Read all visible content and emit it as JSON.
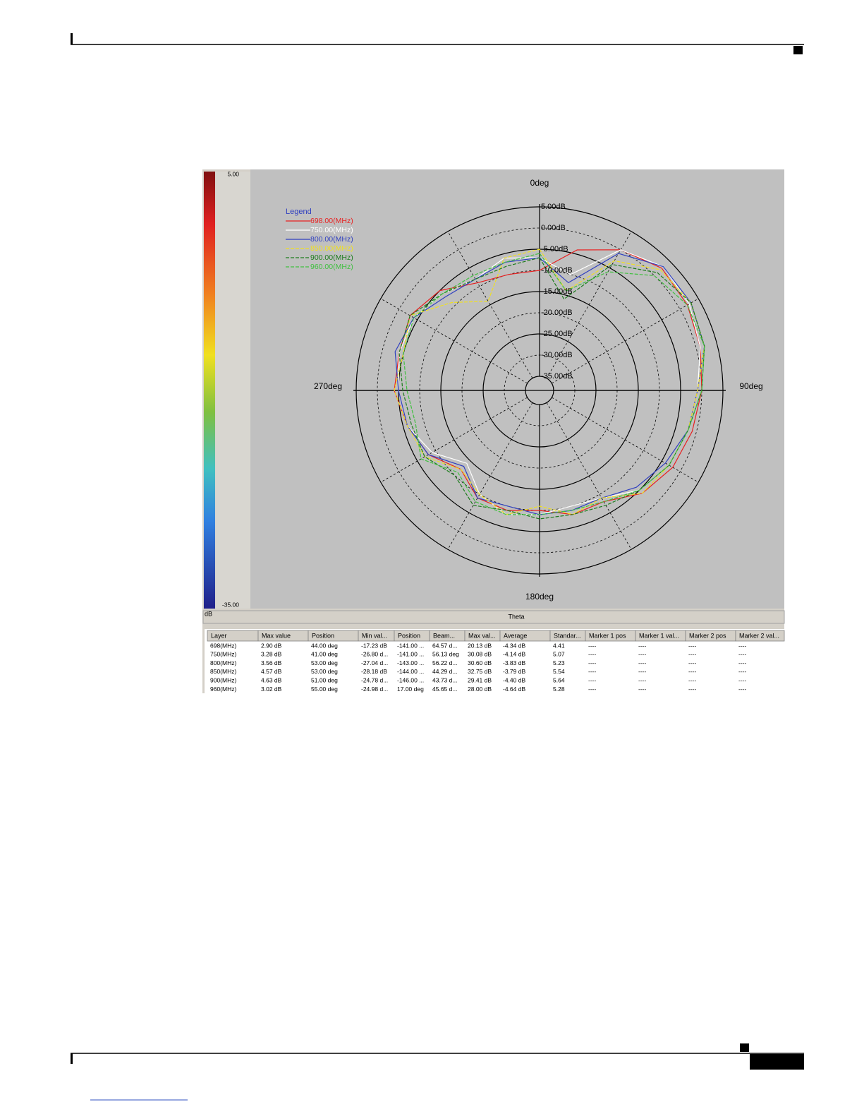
{
  "chart_data": {
    "type": "polar",
    "legend_title": "Legend",
    "theta": [
      0,
      15,
      30,
      45,
      60,
      75,
      90,
      105,
      120,
      135,
      150,
      165,
      180,
      195,
      210,
      225,
      240,
      255,
      270,
      285,
      300,
      315,
      330,
      345
    ],
    "rlim": [
      -35,
      5
    ],
    "rticks": [
      {
        "value": 5,
        "label": "5.00dB"
      },
      {
        "value": 0,
        "label": "0.00dB"
      },
      {
        "value": -5,
        "label": "-5.00dB"
      },
      {
        "value": -10,
        "label": "-10.00dB"
      },
      {
        "value": -15,
        "label": "-15.00dB"
      },
      {
        "value": -20,
        "label": "-20.00dB"
      },
      {
        "value": -25,
        "label": "-25.00dB"
      },
      {
        "value": -30,
        "label": "-30.00dB"
      },
      {
        "value": -35,
        "label": "-35.00dB"
      }
    ],
    "thetaticks": [
      {
        "value": 0,
        "label": "0deg"
      },
      {
        "value": 90,
        "label": "90deg"
      },
      {
        "value": 180,
        "label": "180deg"
      },
      {
        "value": 270,
        "label": "270deg"
      }
    ],
    "grid": true,
    "clim": [
      -35,
      5
    ],
    "cticks": [
      {
        "value": 5,
        "label": "5.00"
      },
      {
        "value": -35,
        "label": "-35.00"
      }
    ],
    "colorbar_label": "dB",
    "xlabel": "Theta",
    "series": [
      {
        "name": "698.00(MHz)",
        "color": "#e82020",
        "dashed": false,
        "values": [
          -10,
          -4,
          0,
          2.5,
          2,
          1,
          0,
          -1,
          -2,
          -4,
          -8,
          -8,
          -10,
          -9,
          -9,
          -12,
          -8,
          -6,
          -4,
          -4,
          -3,
          -5,
          -9,
          -10
        ]
      },
      {
        "name": "750.00(MHz)",
        "color": "#ffffff",
        "dashed": false,
        "values": [
          -7,
          -10,
          0,
          3,
          2.5,
          1,
          -1,
          -2,
          -3,
          -5,
          -9,
          -10,
          -9,
          -8,
          -10,
          -14,
          -9,
          -6,
          -5,
          -4,
          -4,
          -6,
          -8,
          -6
        ]
      },
      {
        "name": "800.00(MHz)",
        "color": "#3040c0",
        "dashed": false,
        "values": [
          -7,
          -12,
          -1,
          3,
          3,
          2,
          -1,
          -2,
          -4,
          -6,
          -9,
          -9,
          -9,
          -10,
          -9,
          -13,
          -8,
          -6,
          -5,
          -3,
          -4,
          -7,
          -8,
          -7
        ]
      },
      {
        "name": "850.00(MHz)",
        "color": "#f0e020",
        "dashed": true,
        "values": [
          -5,
          -14,
          -3,
          2,
          3,
          2,
          -1,
          -2,
          -3,
          -4,
          -9,
          -8,
          -11,
          -8,
          -10,
          -12,
          -7,
          -6,
          -4,
          -5,
          -3,
          -9,
          -14,
          -6
        ]
      },
      {
        "name": "900.00(MHz)",
        "color": "#1c7c1c",
        "dashed": true,
        "values": [
          -7,
          -16,
          -4,
          1,
          3,
          2,
          0,
          -2,
          -3,
          -5,
          -7,
          -8,
          -8,
          -9,
          -7,
          -10,
          -7,
          -7,
          -6,
          -4,
          -3,
          -6,
          -8,
          -8
        ]
      },
      {
        "name": "960.00(MHz)",
        "color": "#40c040",
        "dashed": true,
        "values": [
          -6,
          -14,
          -6,
          0,
          2,
          2,
          0,
          -2,
          -3,
          -5,
          -8,
          -9,
          -9,
          -8,
          -8,
          -11,
          -6,
          -8,
          -7,
          -5,
          -4,
          -6,
          -7,
          -7
        ]
      }
    ]
  },
  "table": {
    "header": [
      "Layer",
      "Max value",
      "Position",
      "Min val...",
      "Position",
      "Beam...",
      "Max val...",
      "Average",
      "Standar...",
      "Marker 1 pos",
      "Marker 1 val...",
      "Marker 2 pos",
      "Marker 2 val..."
    ],
    "rows": [
      [
        "698(MHz)",
        "2.90 dB",
        "44.00 deg",
        "-17.23 dB",
        "-141.00 ...",
        "64.57 d...",
        "20.13 dB",
        "-4.34 dB",
        "4.41",
        "----",
        "----",
        "----",
        "----"
      ],
      [
        "750(MHz)",
        "3.28 dB",
        "41.00 deg",
        "-26.80 d...",
        "-141.00 ...",
        "56.13 deg",
        "30.08 dB",
        "-4.14 dB",
        "5.07",
        "----",
        "----",
        "----",
        "----"
      ],
      [
        "800(MHz)",
        "3.56 dB",
        "53.00 deg",
        "-27.04 d...",
        "-143.00 ...",
        "56.22 d...",
        "30.60 dB",
        "-3.83 dB",
        "5.23",
        "----",
        "----",
        "----",
        "----"
      ],
      [
        "850(MHz)",
        "4.57 dB",
        "53.00 deg",
        "-28.18 dB",
        "-144.00 ...",
        "44.29 d...",
        "32.75 dB",
        "-3.79 dB",
        "5.54",
        "----",
        "----",
        "----",
        "----"
      ],
      [
        "900(MHz)",
        "4.63 dB",
        "51.00 deg",
        "-24.78 d...",
        "-146.00 ...",
        "43.73 d...",
        "29.41 dB",
        "-4.40 dB",
        "5.64",
        "----",
        "----",
        "----",
        "----"
      ],
      [
        "960(MHz)",
        "3.02 dB",
        "55.00 deg",
        "-24.98 d...",
        "17.00 deg",
        "45.65 d...",
        "28.00 dB",
        "-4.64 dB",
        "5.28",
        "----",
        "----",
        "----",
        "----"
      ]
    ]
  }
}
